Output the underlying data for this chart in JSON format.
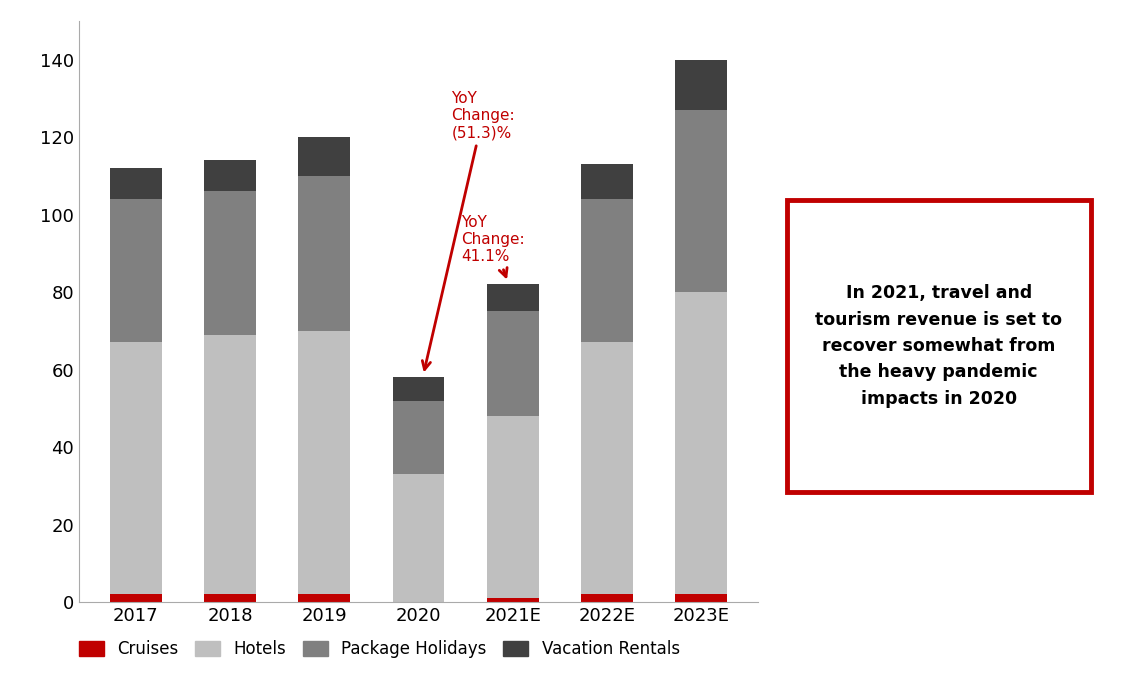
{
  "categories": [
    "2017",
    "2018",
    "2019",
    "2020",
    "2021E",
    "2022E",
    "2023E"
  ],
  "cruises": [
    2.0,
    2.0,
    2.0,
    0.0,
    1.0,
    2.0,
    2.0
  ],
  "hotels": [
    65.0,
    67.0,
    68.0,
    33.0,
    47.0,
    65.0,
    78.0
  ],
  "package_holidays": [
    37.0,
    37.0,
    40.0,
    19.0,
    27.0,
    37.0,
    47.0
  ],
  "vacation_rentals": [
    8.0,
    8.0,
    10.0,
    6.0,
    7.0,
    9.0,
    13.0
  ],
  "color_cruises": "#c00000",
  "color_hotels": "#bfbfbf",
  "color_package": "#808080",
  "color_vacation": "#404040",
  "ylim": [
    0,
    150
  ],
  "yticks": [
    0,
    20,
    40,
    60,
    80,
    100,
    120,
    140
  ],
  "annotation_color": "#c00000",
  "box_text": "In 2021, travel and\ntourism revenue is set to\nrecover somewhat from\nthe heavy pandemic\nimpacts in 2020",
  "box_color": "#c00000",
  "yoy1_text": "YoY\nChange:\n(51.3)%",
  "yoy2_text": "YoY\nChange:\n41.1%",
  "legend_labels": [
    "Cruises",
    "Hotels",
    "Package Holidays",
    "Vacation Rentals"
  ]
}
